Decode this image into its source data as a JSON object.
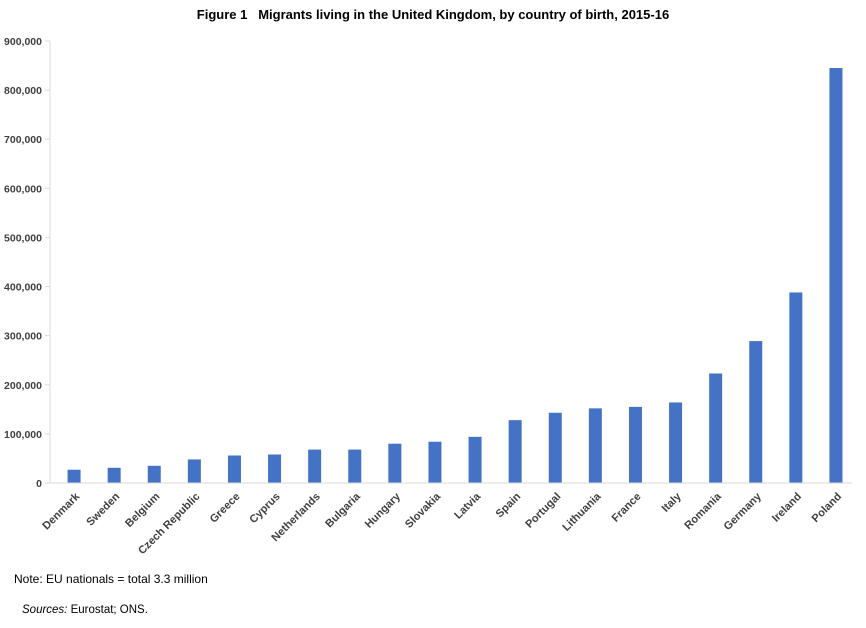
{
  "chart_data": {
    "type": "bar",
    "title": "Figure 1   Migrants living in the United Kingdom, by country of birth, 2015-16",
    "categories": [
      "Denmark",
      "Sweden",
      "Belgium",
      "Czech Republic",
      "Greece",
      "Cyprus",
      "Netherlands",
      "Bulgaria",
      "Hungary",
      "Slovakia",
      "Latvia",
      "Spain",
      "Portugal",
      "Lithuania",
      "France",
      "Italy",
      "Romania",
      "Germany",
      "Ireland",
      "Poland"
    ],
    "values": [
      27000,
      31000,
      35000,
      48000,
      56000,
      58000,
      68000,
      68000,
      80000,
      84000,
      94000,
      128000,
      143000,
      152000,
      155000,
      164000,
      223000,
      289000,
      388000,
      845000
    ],
    "ylim": [
      0,
      900000
    ],
    "yticks": [
      0,
      100000,
      200000,
      300000,
      400000,
      500000,
      600000,
      700000,
      800000,
      900000
    ],
    "ytick_labels": [
      "0",
      "100,000",
      "200,000",
      "300,000",
      "400,000",
      "500,000",
      "600,000",
      "700,000",
      "800,000",
      "900,000"
    ],
    "xlabel": "",
    "ylabel": "",
    "grid": false,
    "bar_color": "#4472C4"
  },
  "note": "Note:  EU nationals = total  3.3 million",
  "sources": {
    "label": "Sources:",
    "text": " Eurostat; ONS."
  }
}
